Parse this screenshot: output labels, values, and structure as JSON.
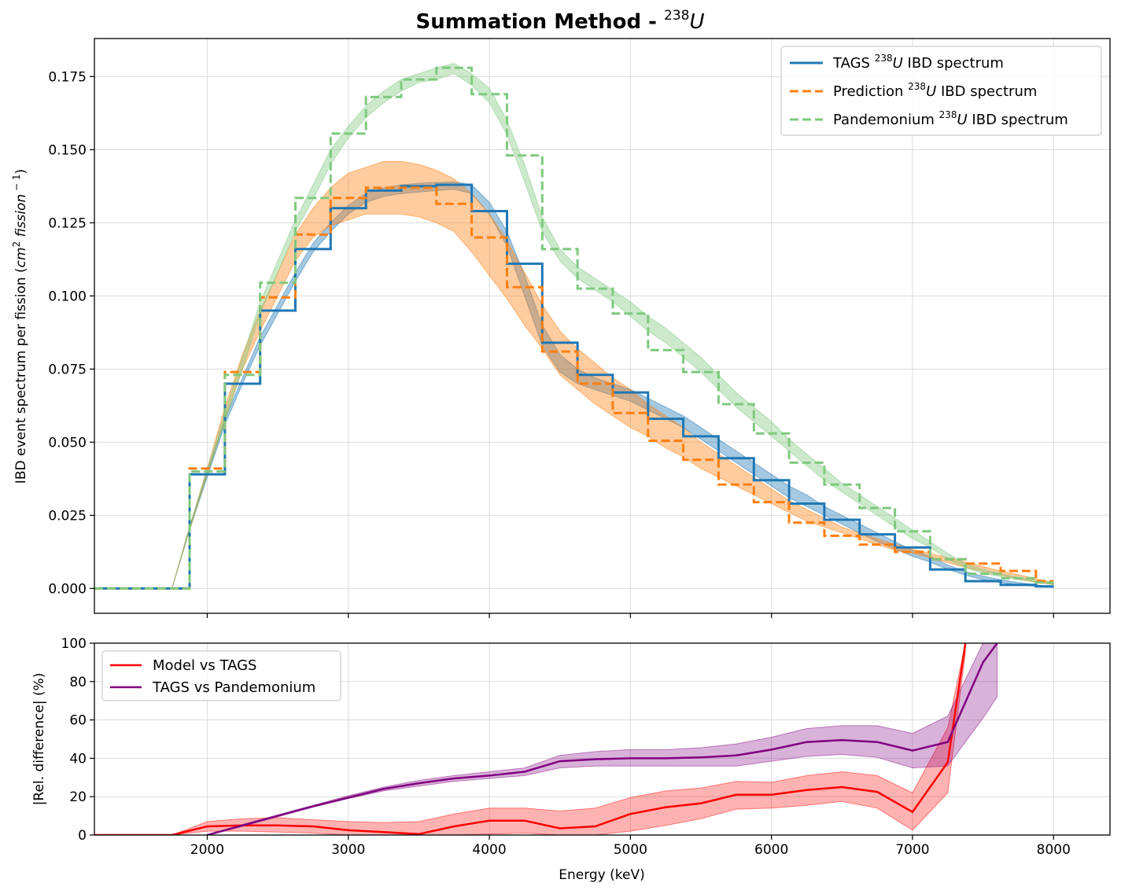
{
  "chart_data": [
    {
      "type": "line",
      "title": "Summation Method - ",
      "title_sup_prefix": "238",
      "title_suffix": "U",
      "xlabel": "",
      "ylabel_main": "IBD event spectrum per fission (",
      "ylabel_unit": "cm",
      "ylabel_unit_sup": "2",
      "ylabel_unit_tail": " fission",
      "ylabel_unit_tail_sup": " − 1",
      "ylabel_close": ")",
      "xlim": [
        1200,
        8400
      ],
      "ylim": [
        -0.0085,
        0.188
      ],
      "yticks": [
        0.0,
        0.025,
        0.05,
        0.075,
        0.1,
        0.125,
        0.15,
        0.175
      ],
      "ytick_labels": [
        "0.000",
        "0.025",
        "0.050",
        "0.075",
        "0.100",
        "0.125",
        "0.150",
        "0.175"
      ],
      "xticks": [
        2000,
        3000,
        4000,
        5000,
        6000,
        7000,
        8000
      ],
      "grid": true,
      "legend_position": "top-right",
      "legend": [
        {
          "pre": "TAGS ",
          "sup": "238",
          "ital": "U",
          "post": " IBD spectrum",
          "color": "#1f77b4",
          "dash": "solid"
        },
        {
          "pre": "Prediction ",
          "sup": "238",
          "ital": "U",
          "post": " IBD spectrum",
          "color": "#ff7f0e",
          "dash": "dashed"
        },
        {
          "pre": "Pandemonium ",
          "sup": "238",
          "ital": "U",
          "post": " IBD spectrum",
          "color": "#7fc97f",
          "dash": "dashed"
        }
      ],
      "bands": [
        {
          "name": "TAGS band",
          "color": "#1f77b4",
          "x": [
            1750,
            1875,
            2000,
            2125,
            2250,
            2375,
            2500,
            2625,
            2750,
            2875,
            3000,
            3125,
            3250,
            3375,
            3500,
            3625,
            3750,
            3875,
            4000,
            4125,
            4250,
            4375,
            4500,
            4625,
            4750,
            4875,
            5000,
            5125,
            5250,
            5375,
            5500,
            5625,
            5750,
            5875,
            6000,
            6125,
            6250,
            6375,
            6500,
            6625,
            6750,
            6875,
            7000,
            7125,
            7250,
            7375,
            7500,
            7625,
            7750,
            7875,
            8000
          ],
          "low": [
            0.0,
            0.02,
            0.038,
            0.056,
            0.07,
            0.083,
            0.094,
            0.105,
            0.115,
            0.122,
            0.128,
            0.132,
            0.134,
            0.135,
            0.1355,
            0.136,
            0.1365,
            0.135,
            0.128,
            0.117,
            0.1,
            0.083,
            0.074,
            0.07,
            0.068,
            0.066,
            0.064,
            0.061,
            0.058,
            0.055,
            0.051,
            0.047,
            0.043,
            0.039,
            0.035,
            0.031,
            0.028,
            0.025,
            0.022,
            0.019,
            0.016,
            0.0135,
            0.011,
            0.009,
            0.0065,
            0.0045,
            0.003,
            0.002,
            0.0012,
            0.0007,
            0.0003
          ],
          "high": [
            0.0,
            0.021,
            0.04,
            0.058,
            0.072,
            0.086,
            0.097,
            0.108,
            0.118,
            0.125,
            0.131,
            0.135,
            0.137,
            0.138,
            0.1385,
            0.1388,
            0.139,
            0.138,
            0.132,
            0.122,
            0.107,
            0.09,
            0.08,
            0.075,
            0.072,
            0.07,
            0.068,
            0.065,
            0.062,
            0.059,
            0.055,
            0.051,
            0.047,
            0.043,
            0.039,
            0.035,
            0.032,
            0.028,
            0.025,
            0.022,
            0.019,
            0.016,
            0.013,
            0.011,
            0.008,
            0.0058,
            0.0042,
            0.003,
            0.002,
            0.0012,
            0.0006
          ]
        },
        {
          "name": "Prediction band",
          "color": "#ff7f0e",
          "x": [
            1750,
            1875,
            2000,
            2125,
            2250,
            2375,
            2500,
            2625,
            2750,
            2875,
            3000,
            3125,
            3250,
            3375,
            3500,
            3625,
            3750,
            3875,
            4000,
            4125,
            4250,
            4375,
            4500,
            4625,
            4750,
            4875,
            5000,
            5125,
            5250,
            5375,
            5500,
            5625,
            5750,
            5875,
            6000,
            6125,
            6250,
            6375,
            6500,
            6625,
            6750,
            6875,
            7000,
            7125,
            7250,
            7375,
            7500,
            7625,
            7750,
            7875,
            8000
          ],
          "low": [
            0.0,
            0.02,
            0.039,
            0.058,
            0.075,
            0.088,
            0.1,
            0.112,
            0.12,
            0.124,
            0.126,
            0.128,
            0.128,
            0.128,
            0.127,
            0.125,
            0.122,
            0.115,
            0.107,
            0.099,
            0.09,
            0.082,
            0.073,
            0.068,
            0.063,
            0.059,
            0.055,
            0.052,
            0.048,
            0.045,
            0.041,
            0.038,
            0.035,
            0.032,
            0.029,
            0.026,
            0.023,
            0.021,
            0.019,
            0.017,
            0.015,
            0.013,
            0.012,
            0.0105,
            0.0088,
            0.0072,
            0.0058,
            0.0045,
            0.0033,
            0.0022,
            0.0013
          ],
          "high": [
            0.0,
            0.021,
            0.041,
            0.062,
            0.08,
            0.095,
            0.108,
            0.121,
            0.13,
            0.137,
            0.142,
            0.144,
            0.146,
            0.146,
            0.145,
            0.143,
            0.14,
            0.135,
            0.128,
            0.119,
            0.108,
            0.097,
            0.088,
            0.082,
            0.077,
            0.072,
            0.068,
            0.063,
            0.059,
            0.055,
            0.05,
            0.046,
            0.042,
            0.038,
            0.034,
            0.03,
            0.027,
            0.024,
            0.021,
            0.019,
            0.017,
            0.015,
            0.0135,
            0.012,
            0.0105,
            0.009,
            0.0075,
            0.006,
            0.0047,
            0.0033,
            0.002
          ]
        },
        {
          "name": "Pandemonium band",
          "color": "#7fc97f",
          "x": [
            1750,
            1875,
            2000,
            2125,
            2250,
            2375,
            2500,
            2625,
            2750,
            2875,
            3000,
            3125,
            3250,
            3375,
            3500,
            3625,
            3750,
            3875,
            4000,
            4125,
            4250,
            4375,
            4500,
            4625,
            4750,
            4875,
            5000,
            5125,
            5250,
            5375,
            5500,
            5625,
            5750,
            5875,
            6000,
            6125,
            6250,
            6375,
            6500,
            6625,
            6750,
            6875,
            7000,
            7125,
            7250,
            7375,
            7500,
            7625,
            7750,
            7875,
            8000
          ],
          "low": [
            0.0,
            0.02,
            0.039,
            0.057,
            0.075,
            0.094,
            0.108,
            0.122,
            0.133,
            0.145,
            0.154,
            0.161,
            0.166,
            0.17,
            0.173,
            0.174,
            0.176,
            0.172,
            0.166,
            0.155,
            0.139,
            0.122,
            0.112,
            0.106,
            0.102,
            0.098,
            0.093,
            0.088,
            0.084,
            0.079,
            0.074,
            0.068,
            0.062,
            0.057,
            0.052,
            0.047,
            0.042,
            0.037,
            0.033,
            0.029,
            0.025,
            0.021,
            0.017,
            0.014,
            0.01,
            0.007,
            0.0052,
            0.004,
            0.003,
            0.0021,
            0.0013
          ],
          "high": [
            0.0,
            0.021,
            0.041,
            0.06,
            0.079,
            0.098,
            0.112,
            0.126,
            0.138,
            0.15,
            0.158,
            0.165,
            0.17,
            0.174,
            0.176,
            0.178,
            0.1795,
            0.176,
            0.171,
            0.16,
            0.145,
            0.127,
            0.116,
            0.11,
            0.106,
            0.102,
            0.098,
            0.093,
            0.089,
            0.084,
            0.079,
            0.073,
            0.067,
            0.062,
            0.057,
            0.051,
            0.046,
            0.041,
            0.036,
            0.032,
            0.028,
            0.024,
            0.02,
            0.016,
            0.012,
            0.0085,
            0.0065,
            0.005,
            0.0038,
            0.0027,
            0.0017
          ]
        }
      ],
      "steps": [
        {
          "name": "TAGS",
          "color": "#1f77b4",
          "dash": "solid",
          "width": 3,
          "edges": [
            1200,
            1875,
            2125,
            2375,
            2625,
            2875,
            3125,
            3375,
            3625,
            3875,
            4125,
            4375,
            4625,
            4875,
            5125,
            5375,
            5625,
            5875,
            6125,
            6375,
            6625,
            6875,
            7125,
            7375,
            7625,
            7875,
            8000
          ],
          "values": [
            0.0,
            0.039,
            0.07,
            0.095,
            0.116,
            0.13,
            0.136,
            0.1375,
            0.138,
            0.129,
            0.111,
            0.084,
            0.073,
            0.067,
            0.058,
            0.052,
            0.0445,
            0.037,
            0.029,
            0.0235,
            0.0185,
            0.014,
            0.0065,
            0.0025,
            0.0012,
            0.0007
          ]
        },
        {
          "name": "Prediction",
          "color": "#ff7f0e",
          "dash": "dashed",
          "width": 3,
          "edges": [
            1200,
            1875,
            2125,
            2375,
            2625,
            2875,
            3125,
            3375,
            3625,
            3875,
            4125,
            4375,
            4625,
            4875,
            5125,
            5375,
            5625,
            5875,
            6125,
            6375,
            6625,
            6875,
            7125,
            7375,
            7625,
            7875,
            8000
          ],
          "values": [
            0.0,
            0.041,
            0.074,
            0.0995,
            0.121,
            0.1335,
            0.137,
            0.137,
            0.1315,
            0.12,
            0.103,
            0.081,
            0.07,
            0.06,
            0.0505,
            0.044,
            0.0355,
            0.0295,
            0.0225,
            0.018,
            0.015,
            0.0125,
            0.01,
            0.0085,
            0.006,
            0.0025
          ]
        },
        {
          "name": "Pandemonium",
          "color": "#7fc97f",
          "dash": "dashed",
          "width": 3,
          "edges": [
            1200,
            1875,
            2125,
            2375,
            2625,
            2875,
            3125,
            3375,
            3625,
            3875,
            4125,
            4375,
            4625,
            4875,
            5125,
            5375,
            5625,
            5875,
            6125,
            6375,
            6625,
            6875,
            7125,
            7375,
            7625,
            7875,
            8000
          ],
          "values": [
            0.0,
            0.04,
            0.073,
            0.1045,
            0.1335,
            0.1555,
            0.168,
            0.174,
            0.178,
            0.169,
            0.148,
            0.116,
            0.1025,
            0.094,
            0.0815,
            0.074,
            0.063,
            0.053,
            0.043,
            0.0355,
            0.0275,
            0.0195,
            0.01,
            0.005,
            0.0035,
            0.002
          ]
        }
      ]
    },
    {
      "type": "line",
      "xlabel": "Energy (keV)",
      "ylabel": "|Rel. difference| (%)",
      "xlim": [
        1200,
        8400
      ],
      "ylim": [
        0,
        100
      ],
      "yticks": [
        0,
        20,
        40,
        60,
        80,
        100
      ],
      "ytick_labels": [
        "0",
        "20",
        "40",
        "60",
        "80",
        "100"
      ],
      "xticks": [
        2000,
        3000,
        4000,
        5000,
        6000,
        7000,
        8000
      ],
      "xtick_labels": [
        "2000",
        "3000",
        "4000",
        "5000",
        "6000",
        "7000",
        "8000"
      ],
      "grid": true,
      "legend_position": "top-left",
      "series": [
        {
          "name": "Model vs TAGS",
          "color": "#ff0000",
          "x": [
            1200,
            1750,
            2000,
            2250,
            2500,
            2750,
            3000,
            3250,
            3500,
            3750,
            4000,
            4250,
            4500,
            4750,
            5000,
            5250,
            5500,
            5750,
            6000,
            6250,
            6500,
            6750,
            7000,
            7250,
            7375
          ],
          "y": [
            0,
            0,
            4.5,
            5,
            5,
            4.5,
            2.5,
            1.5,
            0.5,
            4.5,
            7.5,
            7.5,
            3.5,
            4.5,
            11,
            14.5,
            16.5,
            21,
            21,
            23.5,
            25,
            22.5,
            12,
            38,
            100
          ],
          "low": [
            0,
            0,
            2,
            2,
            1.5,
            1,
            0,
            0,
            0,
            0,
            0.5,
            1,
            0,
            0,
            2,
            5,
            8.5,
            13.5,
            14,
            15.5,
            17.5,
            14,
            2.5,
            22,
            95
          ],
          "high": [
            0,
            0,
            7,
            8.5,
            9,
            8,
            7,
            6.5,
            7,
            11,
            14,
            14,
            12.5,
            14,
            19.5,
            23,
            24.5,
            28,
            27.5,
            31,
            33,
            31,
            22,
            56,
            100
          ]
        },
        {
          "name": "TAGS vs Pandemonium",
          "color": "#800080",
          "x": [
            2000,
            2250,
            2500,
            2750,
            3000,
            3250,
            3500,
            3750,
            4000,
            4250,
            4500,
            4750,
            5000,
            5250,
            5500,
            5750,
            6000,
            6250,
            6500,
            6750,
            7000,
            7250,
            7500,
            7600
          ],
          "y": [
            0,
            5,
            10,
            15,
            19.5,
            24,
            27,
            29.5,
            31,
            33,
            38.5,
            39.5,
            40,
            40,
            40.5,
            41.5,
            44.5,
            48.5,
            49.5,
            48.5,
            44,
            48.5,
            90,
            100
          ],
          "low": [
            0,
            4.5,
            9.5,
            14.5,
            19,
            23,
            25.5,
            28,
            29.5,
            31,
            35,
            36,
            36,
            36,
            36,
            36,
            38.5,
            41,
            42,
            40.5,
            35,
            36,
            61,
            72
          ],
          "high": [
            0,
            5.5,
            10.5,
            15.5,
            20.5,
            25,
            28.5,
            31,
            33,
            35,
            41.5,
            43.5,
            44.5,
            44.5,
            45.5,
            47.5,
            51,
            55.5,
            57,
            57,
            53,
            62,
            100,
            100
          ]
        }
      ]
    }
  ]
}
